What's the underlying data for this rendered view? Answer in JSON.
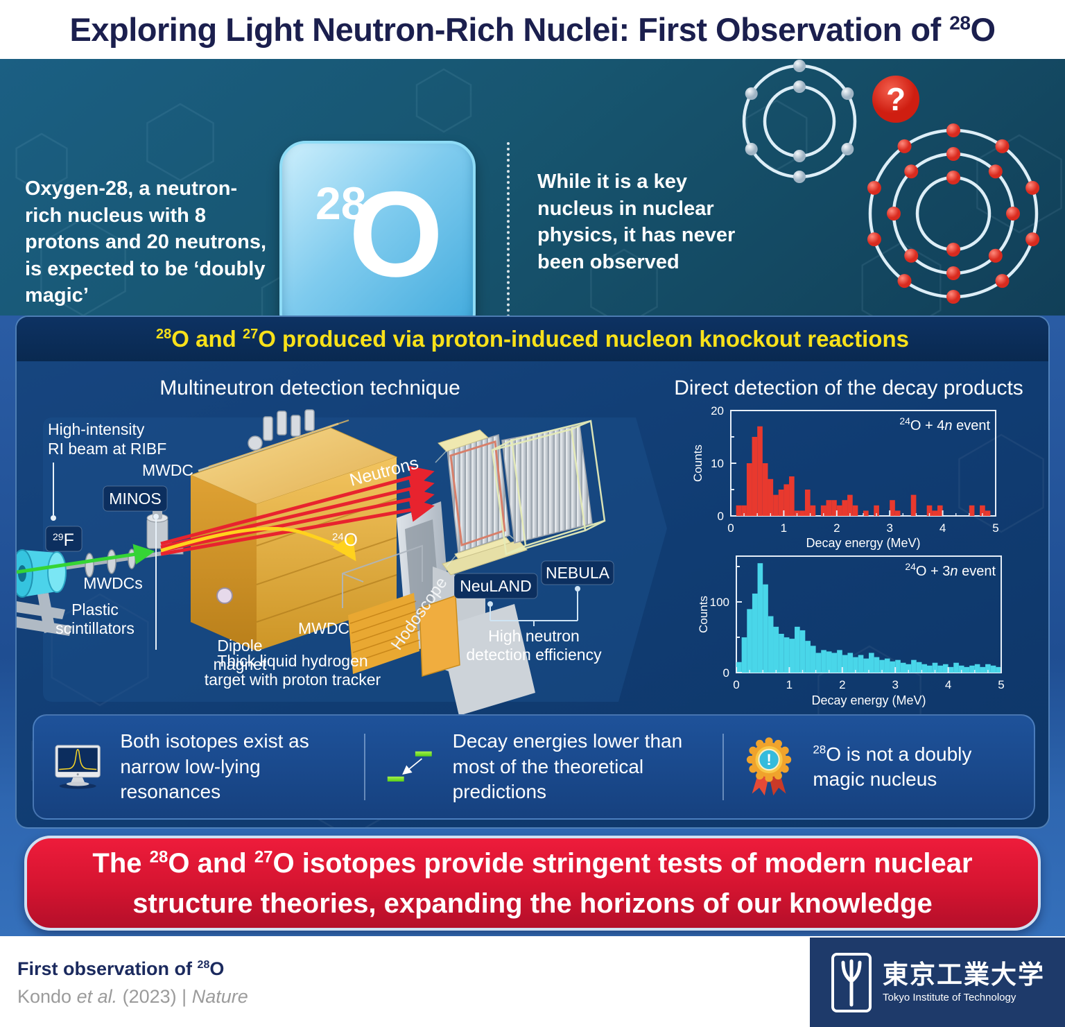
{
  "header": {
    "title_prefix": "Exploring Light Neutron-Rich Nuclei: First Observation of ",
    "iso_mass": "28",
    "iso_symbol": "O"
  },
  "intro": {
    "left_text": "Oxygen-28, a neutron-rich nucleus with 8 protons and 20 neutrons, is expected to be ‘doubly magic’",
    "tile": {
      "mass": "28",
      "symbol": "O"
    },
    "right_text": "While it is a key nucleus in nuclear physics, it has never been observed",
    "question_mark": "?"
  },
  "atoms": {
    "small": {
      "shells": [
        2,
        6
      ],
      "particle_color": "#c9d4dd"
    },
    "large": {
      "shells": [
        2,
        8,
        10
      ],
      "particle_color": "#e8453c"
    }
  },
  "section": {
    "titlebar": {
      "sup1": "28",
      "t1": "O and ",
      "sup2": "27",
      "t2": "O produced via proton-induced nucleon knockout reactions"
    },
    "heading_left": "Multineutron detection technique",
    "heading_right": "Direct detection of the decay products"
  },
  "diagram": {
    "beam_label_1": "High-intensity",
    "beam_label_2": "RI beam at RIBF",
    "mwdc_top": "MWDC",
    "minos": "MINOS",
    "f29_mass": "29",
    "f29_sym": "F",
    "mwdcs": "MWDCs",
    "plastic_1": "Plastic",
    "plastic_2": "scintillators",
    "dipole_1": "Dipole",
    "dipole_2": "magnet",
    "target_1": "Thick liquid hydrogen",
    "target_2": "target with proton tracker",
    "neutrons": "Neutrons",
    "o24_mass": "24",
    "o24_sym": "O",
    "mwdc_bottom": "MWDC",
    "hodoscope": "Hodoscope",
    "neuland": "NeuLAND",
    "nebula": "NEBULA",
    "eff_1": "High neutron",
    "eff_2": "detection efficiency"
  },
  "chart_data": [
    {
      "type": "bar",
      "legend_sup": "24",
      "legend_main": "O + 4",
      "legend_n": "n",
      "legend_tail": " event",
      "xlabel": "Decay energy (MeV)",
      "ylabel": "Counts",
      "xlim": [
        0,
        5
      ],
      "ylim": [
        0,
        20
      ],
      "xticks": [
        "0",
        "1",
        "2",
        "3",
        "4",
        "5"
      ],
      "yticks": [
        "0",
        "10",
        "20"
      ],
      "bin_width": 0.1,
      "color": "#e8392e",
      "values": [
        0,
        2,
        2,
        10,
        15,
        17,
        10,
        7,
        4,
        5,
        6,
        7.5,
        1,
        1,
        5,
        2,
        0,
        2,
        3,
        3,
        2,
        3,
        4,
        2,
        0,
        1,
        0,
        2,
        0,
        0,
        3,
        1,
        0,
        0,
        4,
        0,
        0,
        2,
        1,
        2,
        0,
        0,
        0,
        0,
        0,
        2,
        0,
        2,
        1,
        0
      ]
    },
    {
      "type": "bar",
      "legend_sup": "24",
      "legend_main": "O + 3",
      "legend_n": "n",
      "legend_tail": " event",
      "xlabel": "Decay energy (MeV)",
      "ylabel": "Counts",
      "xlim": [
        0,
        5
      ],
      "ylim": [
        0,
        165
      ],
      "xticks": [
        "0",
        "1",
        "2",
        "3",
        "4",
        "5"
      ],
      "yticks": [
        "0",
        "100"
      ],
      "bin_width": 0.1,
      "color": "#49d6e9",
      "values": [
        15,
        50,
        90,
        112,
        155,
        125,
        80,
        65,
        55,
        50,
        48,
        65,
        60,
        45,
        38,
        28,
        32,
        30,
        28,
        32,
        25,
        28,
        22,
        25,
        20,
        28,
        22,
        18,
        20,
        16,
        18,
        14,
        12,
        18,
        15,
        12,
        10,
        14,
        10,
        12,
        8,
        14,
        10,
        8,
        10,
        12,
        8,
        12,
        10,
        8
      ]
    }
  ],
  "callouts": [
    {
      "icon": "monitor-resonance-icon",
      "text": "Both isotopes exist as narrow low-lying resonances"
    },
    {
      "icon": "energy-levels-icon",
      "text": "Decay energies lower than most of the theoretical predictions"
    },
    {
      "icon": "award-badge-icon",
      "sup": "28",
      "text": "O is not a doubly magic nucleus"
    }
  ],
  "banner": {
    "t1": "The ",
    "s1": "28",
    "t2": "O and ",
    "s2": "27",
    "t3": "O isotopes provide stringent tests of modern nuclear",
    "line2": "structure theories, expanding the horizons of our knowledge"
  },
  "footer": {
    "title_prefix": "First observation of ",
    "title_sup": "28",
    "title_sym": "O",
    "cite_1": "Kondo ",
    "cite_2": "et al.",
    "cite_3": " (2023) | ",
    "cite_4": "Nature",
    "logo_kanji": "東京工業大学",
    "logo_en": "Tokyo Institute of Technology"
  },
  "colors": {
    "title_navy": "#1b1f4e",
    "accent_yellow": "#f8e11a",
    "hist_red": "#e8392e",
    "hist_cyan": "#49d6e9",
    "banner_red": "#d41430",
    "beam_green": "#35d435",
    "neutron_red": "#e8232e",
    "o24_yellow": "#ffd21e",
    "tile_blue": "#3fa9dc",
    "panel_navy": "#0d3263"
  }
}
